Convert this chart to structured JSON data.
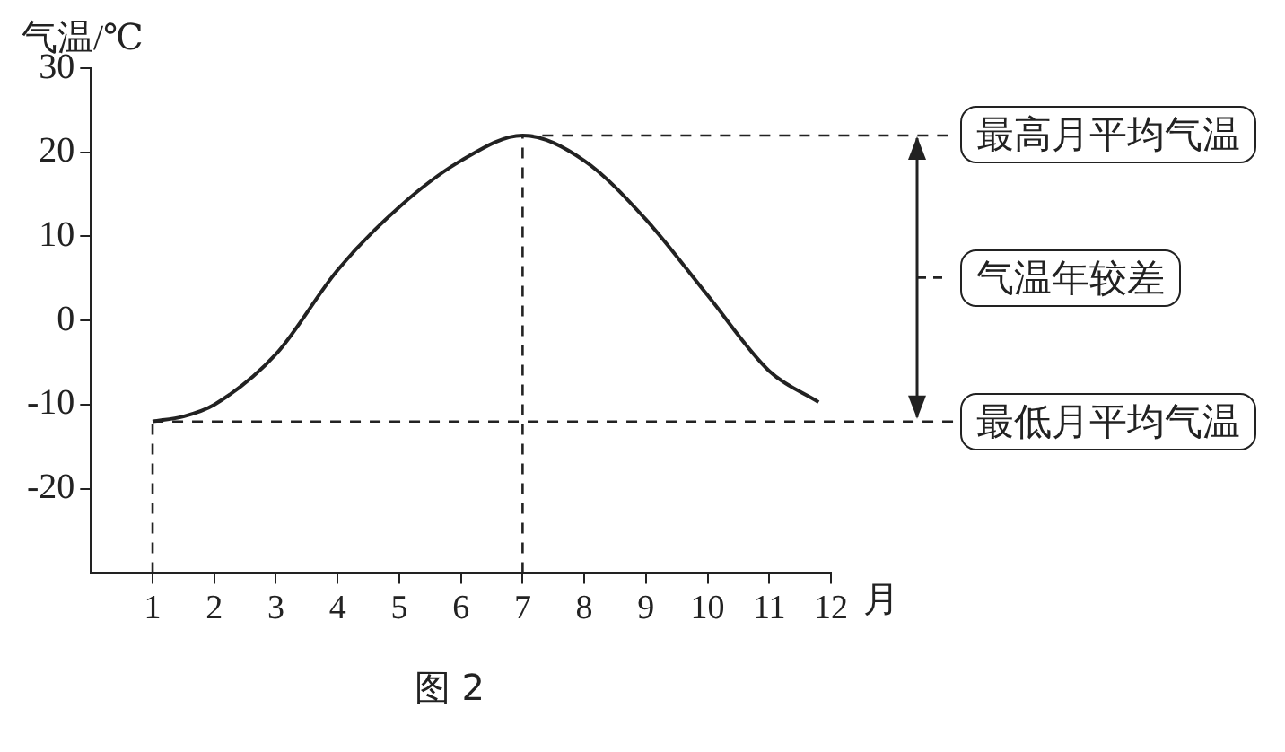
{
  "chart_data": {
    "type": "line",
    "xlabel": "月",
    "ylabel": "气温/℃",
    "xlim": [
      0,
      12
    ],
    "xticks": [
      1,
      2,
      3,
      4,
      5,
      6,
      7,
      8,
      9,
      10,
      11,
      12
    ],
    "ylim": [
      -30,
      30
    ],
    "yticks": [
      -20,
      -10,
      0,
      10,
      20,
      30
    ],
    "marker": "none",
    "line_style": "solid",
    "series": [
      {
        "color": "#222222",
        "x": [
          1,
          1.5,
          2,
          3,
          4,
          5,
          6,
          7,
          8,
          9,
          10,
          11,
          11.8
        ],
        "values": [
          -12,
          -11.4,
          -10,
          -4,
          6,
          13.5,
          19,
          22,
          19,
          12,
          3,
          -6,
          -9.7
        ]
      }
    ],
    "ref_lines": [
      {
        "axis": "x",
        "value": 1,
        "color": "#222222",
        "line_style": "dashed"
      },
      {
        "axis": "x",
        "value": 7,
        "color": "#222222",
        "line_style": "dashed"
      },
      {
        "axis": "y",
        "value": 22,
        "label": "最高月平均气温",
        "color": "#222222",
        "line_style": "dashed"
      },
      {
        "axis": "y",
        "value": -12,
        "label": "最低月平均气温",
        "color": "#222222",
        "line_style": "dashed"
      }
    ],
    "annotations": [
      "气温年较差",
      "图 2"
    ]
  }
}
